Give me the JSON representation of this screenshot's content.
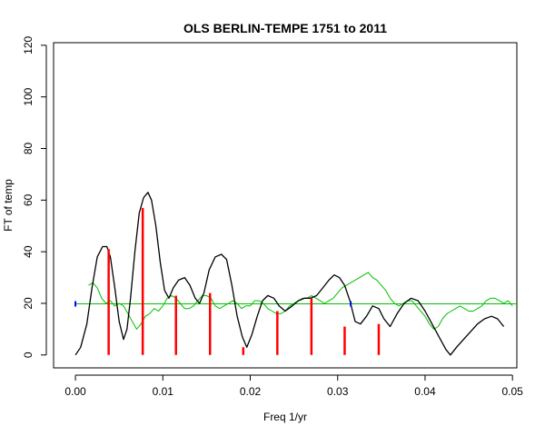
{
  "chart_data": {
    "type": "line",
    "title": "OLS BERLIN-TEMPE 1751 to 2011",
    "xlabel": "Freq 1/yr",
    "ylabel": "FT of temp",
    "xlim": [
      -0.0025,
      0.0505
    ],
    "ylim": [
      -5,
      121
    ],
    "xticks": [
      0.0,
      0.01,
      0.02,
      0.03,
      0.04,
      0.05
    ],
    "xtick_labels": [
      "0.00",
      "0.01",
      "0.02",
      "0.03",
      "0.04",
      "0.05"
    ],
    "yticks": [
      0,
      20,
      40,
      60,
      80,
      100,
      120
    ],
    "ytick_labels": [
      "0",
      "20",
      "40",
      "60",
      "80",
      "100",
      "120"
    ],
    "grid": false,
    "legend": "none",
    "colors": {
      "spectrum": "#000000",
      "noise": "#00c000",
      "reference": "#00c000",
      "peaks": "#ff0000",
      "markers": "#0000ff"
    },
    "series": [
      {
        "key": "spectrum",
        "x": [
          0.0,
          0.0006,
          0.0013,
          0.0019,
          0.0025,
          0.0031,
          0.0036,
          0.004,
          0.0045,
          0.005,
          0.0055,
          0.0059,
          0.0063,
          0.0068,
          0.0073,
          0.0078,
          0.0083,
          0.0087,
          0.0092,
          0.0097,
          0.0102,
          0.0107,
          0.0112,
          0.0118,
          0.0125,
          0.0131,
          0.0137,
          0.0142,
          0.0147,
          0.0153,
          0.016,
          0.0167,
          0.0173,
          0.0179,
          0.0185,
          0.0191,
          0.0196,
          0.0202,
          0.0208,
          0.0214,
          0.022,
          0.0227,
          0.0233,
          0.024,
          0.0248,
          0.0255,
          0.0262,
          0.0269,
          0.0276,
          0.0283,
          0.029,
          0.0296,
          0.0302,
          0.0308,
          0.0314,
          0.032,
          0.0326,
          0.0333,
          0.034,
          0.0347,
          0.0353,
          0.036,
          0.0368,
          0.0376,
          0.0384,
          0.0392,
          0.04,
          0.0408,
          0.0416,
          0.0424,
          0.0429,
          0.0436,
          0.0444,
          0.0452,
          0.046,
          0.0468,
          0.0476,
          0.0483,
          0.049
        ],
        "y": [
          0,
          3,
          12,
          26,
          38,
          42,
          42,
          38,
          26,
          13,
          6,
          10,
          22,
          40,
          55,
          61,
          63,
          60,
          50,
          36,
          25,
          22,
          26,
          29,
          30,
          27,
          22,
          20,
          24,
          33,
          38,
          39,
          37,
          27,
          15,
          7,
          3,
          8,
          15,
          21,
          23,
          22,
          19,
          17,
          19,
          21,
          22,
          22,
          23,
          26,
          29,
          31,
          30,
          27,
          21,
          13,
          12,
          15,
          19,
          18,
          14,
          11,
          16,
          20,
          22,
          21,
          17,
          12,
          7,
          2,
          0,
          3,
          6,
          9,
          12,
          14,
          15,
          14,
          11
        ]
      },
      {
        "key": "noise",
        "x": [
          0.0015,
          0.002,
          0.0025,
          0.003,
          0.0035,
          0.004,
          0.0045,
          0.005,
          0.0055,
          0.006,
          0.0065,
          0.007,
          0.0075,
          0.008,
          0.0085,
          0.009,
          0.0095,
          0.01,
          0.0105,
          0.011,
          0.0115,
          0.012,
          0.0125,
          0.013,
          0.0135,
          0.014,
          0.0145,
          0.015,
          0.0155,
          0.016,
          0.0165,
          0.017,
          0.0175,
          0.018,
          0.0185,
          0.019,
          0.0195,
          0.02,
          0.0205,
          0.021,
          0.0215,
          0.022,
          0.0225,
          0.023,
          0.0235,
          0.024,
          0.0245,
          0.025,
          0.0255,
          0.026,
          0.0265,
          0.027,
          0.0275,
          0.028,
          0.0285,
          0.029,
          0.0295,
          0.03,
          0.0305,
          0.031,
          0.0315,
          0.032,
          0.0325,
          0.033,
          0.0335,
          0.034,
          0.0345,
          0.035,
          0.0355,
          0.036,
          0.0365,
          0.037,
          0.0375,
          0.038,
          0.0385,
          0.039,
          0.0395,
          0.04,
          0.0405,
          0.041,
          0.0415,
          0.042,
          0.0425,
          0.043,
          0.0435,
          0.044,
          0.0445,
          0.045,
          0.0455,
          0.046,
          0.0465,
          0.047,
          0.0475,
          0.048,
          0.0485,
          0.049,
          0.0495,
          0.05
        ],
        "y": [
          27,
          28,
          26,
          22,
          20,
          21,
          19,
          20,
          19,
          16,
          13,
          10,
          12,
          15,
          16,
          18,
          17,
          19,
          22,
          23,
          22,
          20,
          18,
          18,
          19,
          21,
          23,
          23,
          22,
          19,
          18,
          19,
          20,
          21,
          20,
          18,
          19,
          19,
          21,
          21,
          20,
          18,
          17,
          16,
          16,
          17,
          19,
          20,
          21,
          22,
          22,
          23,
          22,
          21,
          20,
          21,
          22,
          24,
          26,
          27,
          28,
          29,
          30,
          31,
          32,
          30,
          29,
          27,
          25,
          22,
          20,
          19,
          20,
          21,
          21,
          19,
          17,
          15,
          12,
          10,
          11,
          14,
          16,
          17,
          18,
          19,
          18,
          17,
          17,
          18,
          19,
          21,
          22,
          22,
          21,
          20,
          21,
          19
        ]
      },
      {
        "key": "reference",
        "x": [
          0.0,
          0.0505
        ],
        "y": [
          19.8,
          19.8
        ]
      }
    ],
    "peaks": {
      "x": [
        0.0038,
        0.0077,
        0.0115,
        0.0154,
        0.0192,
        0.0231,
        0.027,
        0.0308,
        0.0347
      ],
      "y": [
        41,
        57,
        23,
        24,
        3,
        17,
        22,
        11,
        12
      ]
    },
    "markers": {
      "x": [
        0.0,
        0.0315
      ],
      "y": [
        19.8,
        19.8
      ]
    }
  }
}
